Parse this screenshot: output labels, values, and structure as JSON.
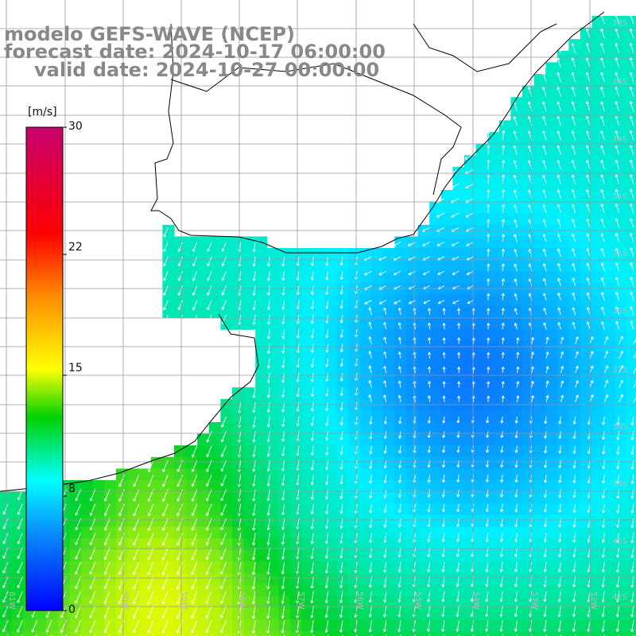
{
  "header": {
    "model": "modelo GEFS-WAVE (NCEP)",
    "forecast": "forecast date: 2024-10-17 06:00:00",
    "valid": "valid date: 2024-10-27 00:00:00"
  },
  "colorbar": {
    "unit": "[m/s]",
    "ticks": [
      "30",
      "22",
      "15",
      "8",
      "0"
    ],
    "tick_values": [
      30,
      22,
      15,
      8,
      0
    ]
  },
  "lat_labels": [
    "33S",
    "34S",
    "35S",
    "36S",
    "37S",
    "38S",
    "39S",
    "40S",
    "41S"
  ],
  "lon_labels": [
    "61W",
    "60W",
    "59W",
    "58W",
    "57W",
    "56W",
    "55W",
    "54W",
    "53W",
    "52W",
    "51W"
  ],
  "colors": {
    "land": "#ffffff",
    "grid": "#999999",
    "coast": "#000000",
    "arrow": "#ffffff",
    "header_text": "#888888"
  },
  "wind_field_description_icon": "wind-arrow-icon"
}
